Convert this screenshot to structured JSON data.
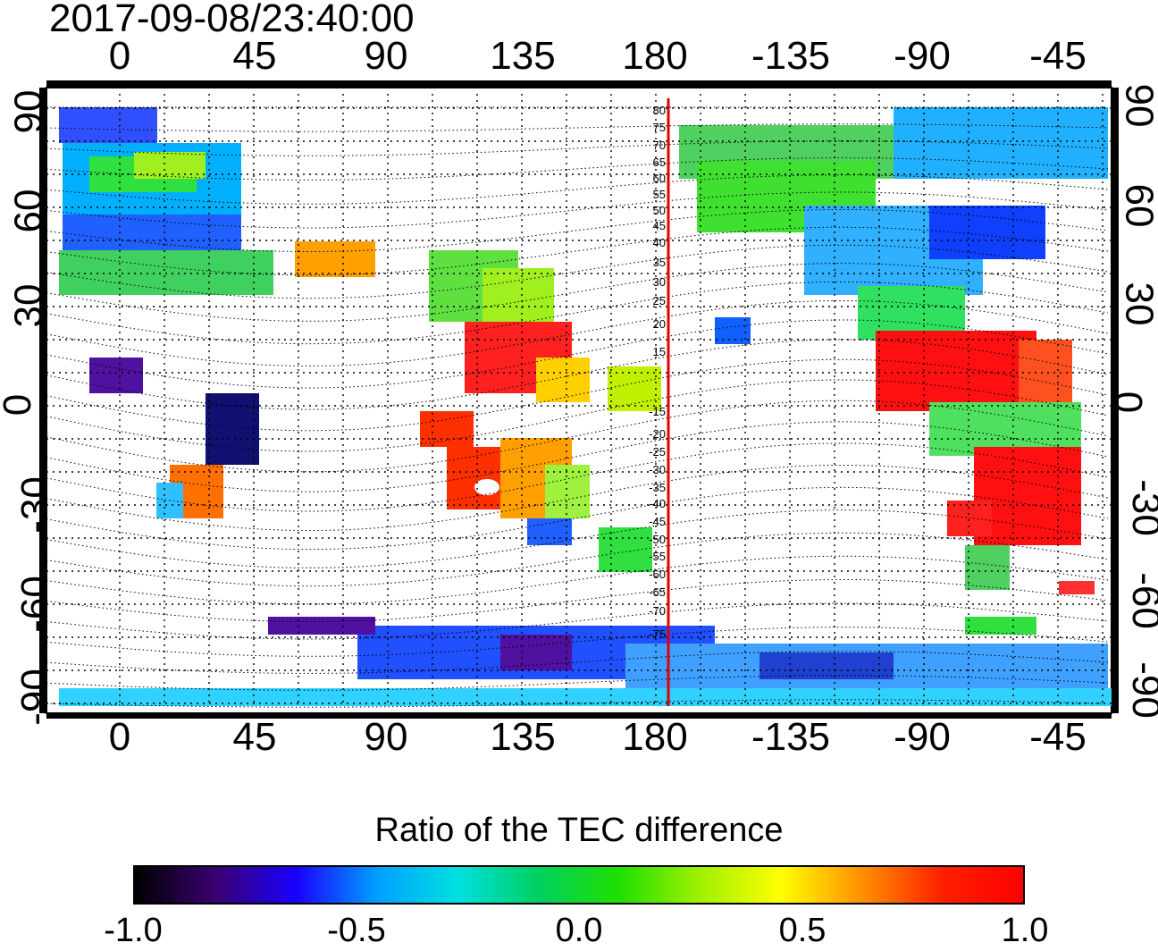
{
  "title": "2017-09-08/23:40:00",
  "lon_labels": [
    "0",
    "45",
    "90",
    "135",
    "180",
    "-135",
    "-90",
    "-45"
  ],
  "lat_labels": [
    "90",
    "60",
    "30",
    "0",
    "-30",
    "-60",
    "-90"
  ],
  "maglat_labels": [
    "80",
    "75",
    "70",
    "65",
    "60",
    "55",
    "50",
    "45",
    "40",
    "35",
    "30",
    "25",
    "20",
    "15",
    "-15",
    "-20",
    "-25",
    "-30",
    "-35",
    "-40",
    "-45",
    "-50",
    "-55",
    "-60",
    "-65",
    "-70",
    "-75"
  ],
  "colorbar": {
    "title": "Ratio of the TEC difference",
    "ticks": [
      "-1.0",
      "-0.5",
      "0.0",
      "0.5",
      "1.0"
    ],
    "colors": [
      "#000000",
      "#3a0070",
      "#1a00ff",
      "#00a0ff",
      "#00e0e0",
      "#00d060",
      "#20e000",
      "#a0f000",
      "#ffff00",
      "#ff9000",
      "#ff2000",
      "#ff0000"
    ]
  },
  "marker_meridian_color": "#e00000"
}
